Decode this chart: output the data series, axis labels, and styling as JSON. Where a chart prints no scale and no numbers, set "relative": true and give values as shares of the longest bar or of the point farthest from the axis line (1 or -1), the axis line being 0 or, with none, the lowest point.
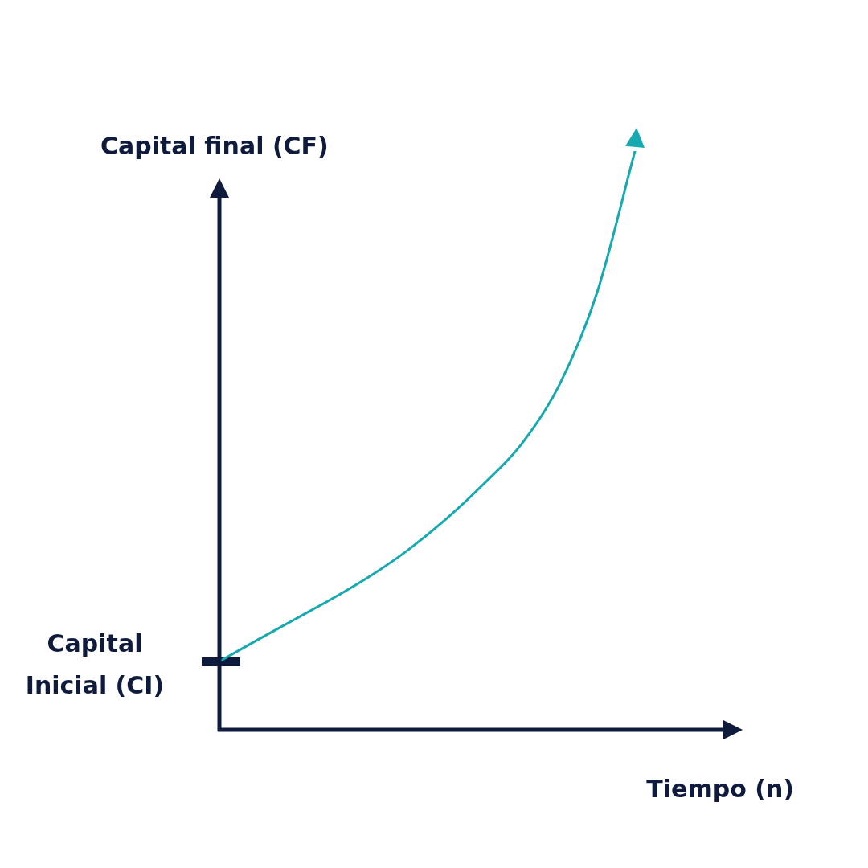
{
  "chart_data": {
    "type": "line",
    "relative": true,
    "xlabel": "Tiempo (n)",
    "ylabel": "Capital final (CF)",
    "categories": [
      null,
      null,
      null,
      null,
      null,
      null,
      null,
      null,
      null,
      null,
      null,
      null,
      null,
      null,
      null
    ],
    "series": [
      {
        "color": "#16a9b1",
        "values": [
          0.118,
          0.155,
          0.191,
          0.227,
          0.266,
          0.311,
          0.364,
          0.425,
          0.494,
          0.596,
          0.756,
          1,
          null,
          null,
          null
        ]
      }
    ],
    "annotations": [
      "Capital Inicial (CI)"
    ],
    "marker": "none",
    "line_style": "solid"
  }
}
